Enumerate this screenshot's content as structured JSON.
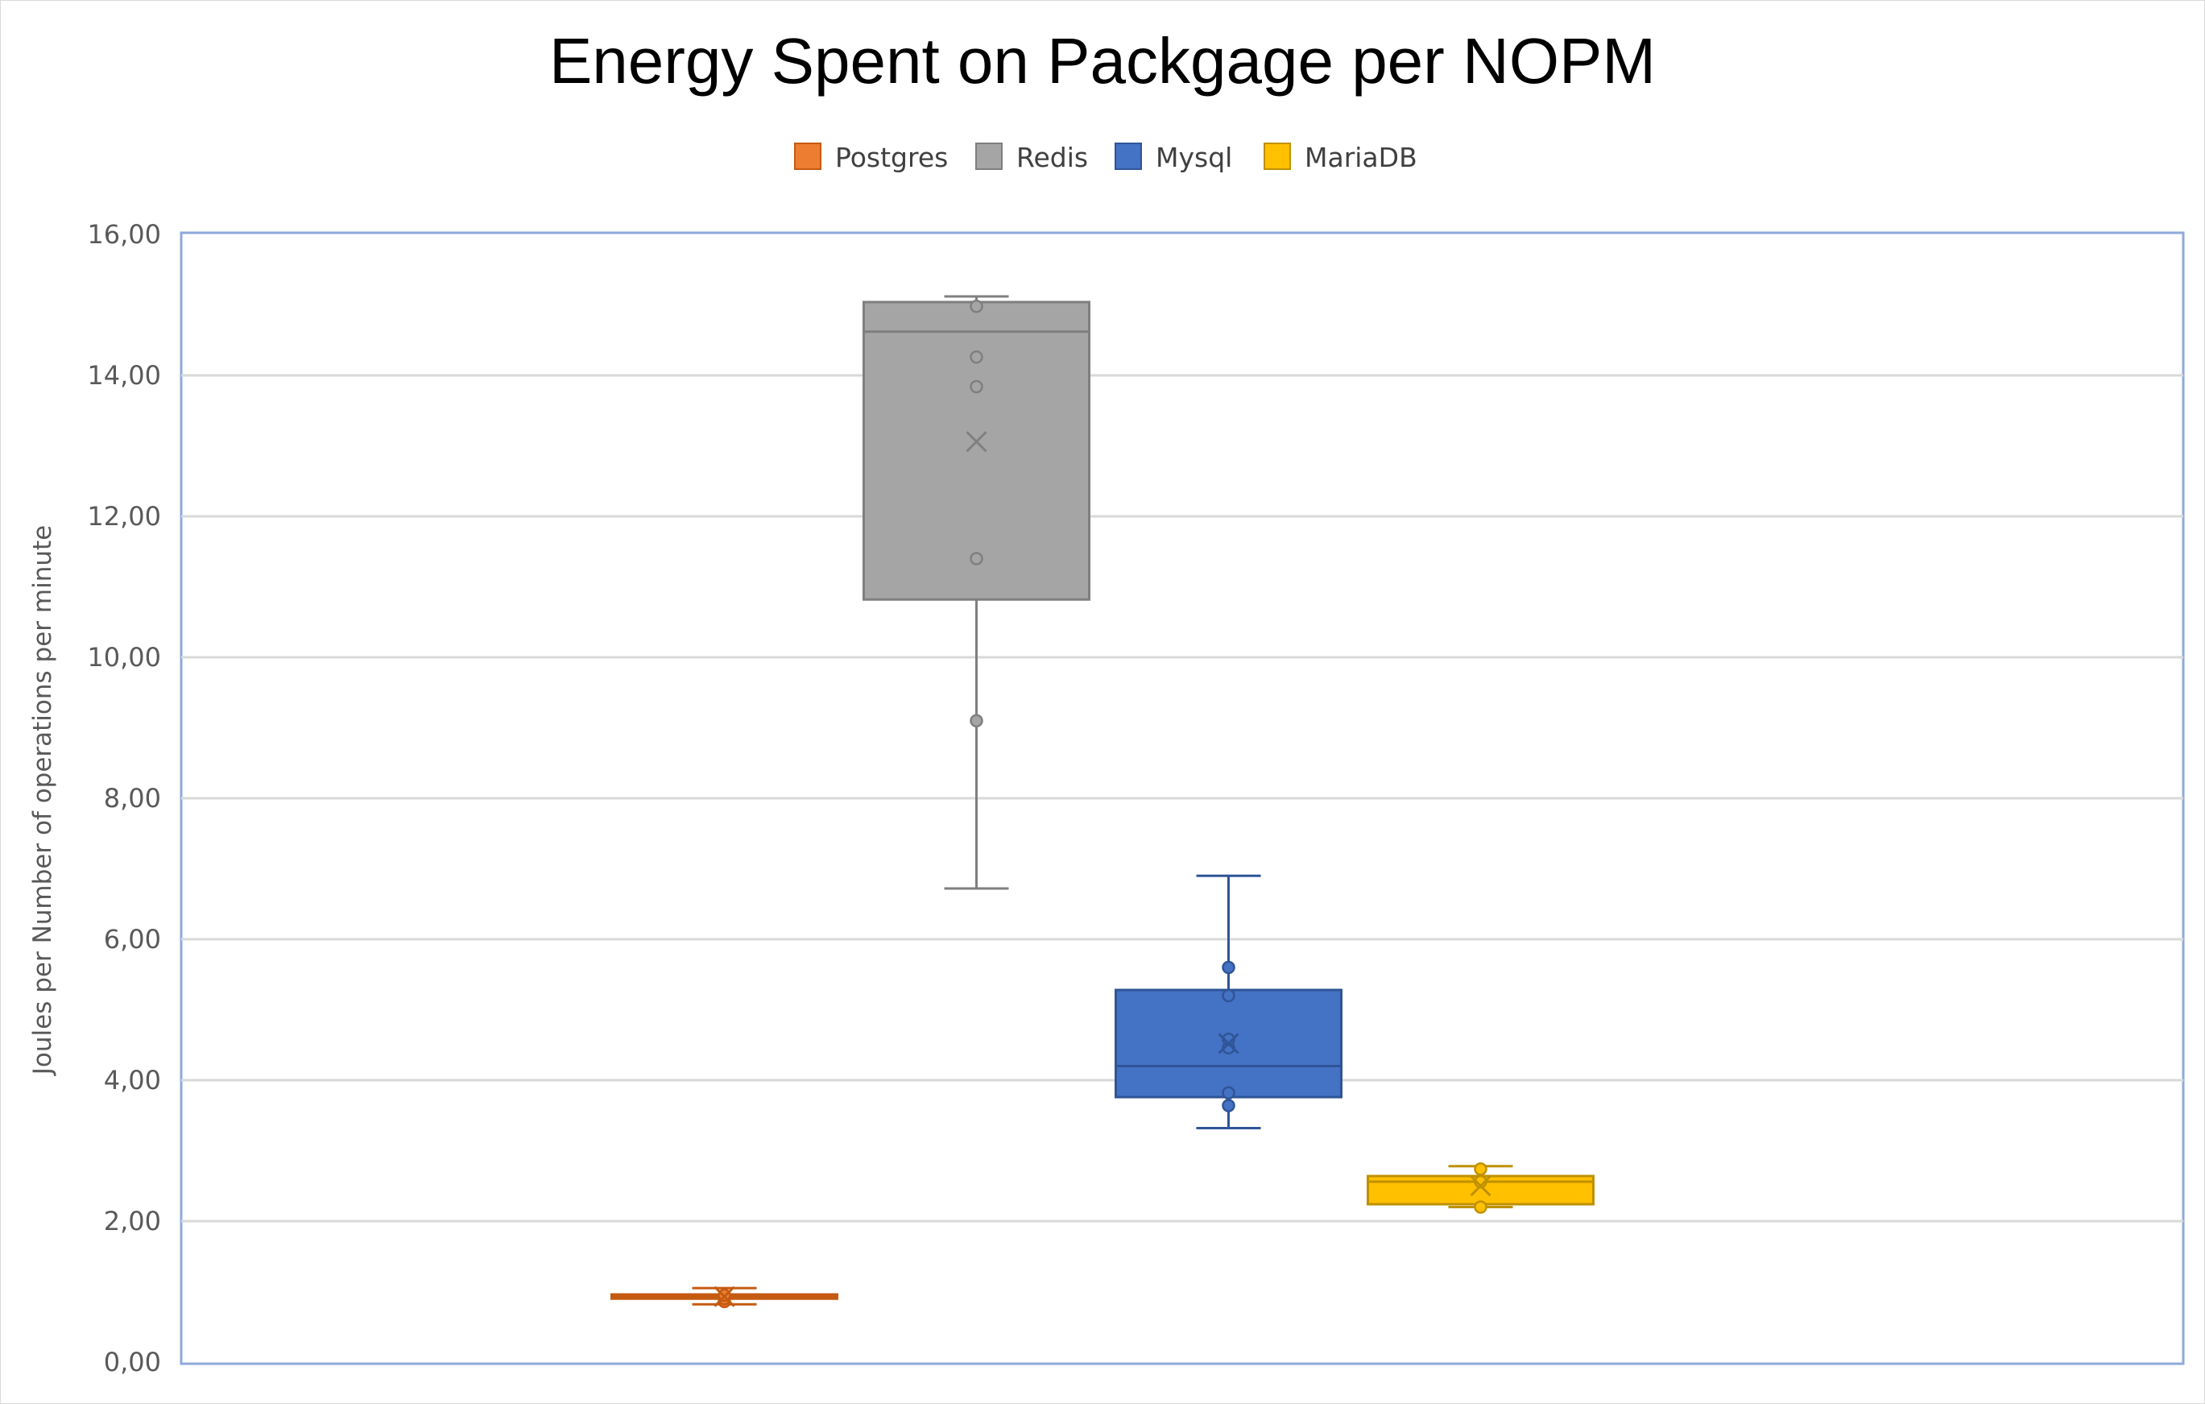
{
  "chart_data": {
    "type": "boxplot",
    "title": "Energy Spent on Packgage per NOPM",
    "xlabel": "",
    "ylabel": "Joules per Number of operations per minute",
    "ylim": [
      0,
      16
    ],
    "yticks": [
      "0,00",
      "2,00",
      "4,00",
      "6,00",
      "8,00",
      "10,00",
      "12,00",
      "14,00",
      "16,00"
    ],
    "grid": true,
    "legend_position": "top",
    "series": [
      {
        "name": "Postgres",
        "color": "#ED7D31",
        "stroke": "#C55A11",
        "whisker_low": 0.82,
        "q1": 0.9,
        "median": 0.93,
        "q3": 0.96,
        "whisker_high": 1.05,
        "mean": 0.93,
        "points": [
          0.86,
          0.9,
          0.95
        ]
      },
      {
        "name": "Redis",
        "color": "#A5A5A5",
        "stroke": "#7F7F7F",
        "whisker_low": 6.72,
        "q1": 10.82,
        "median": 14.62,
        "q3": 15.04,
        "whisker_high": 15.12,
        "mean": 13.06,
        "points": [
          9.1,
          11.4,
          13.84,
          14.26,
          14.98
        ]
      },
      {
        "name": "Mysql",
        "color": "#4472C4",
        "stroke": "#2F5597",
        "whisker_low": 3.32,
        "q1": 3.76,
        "median": 4.2,
        "q3": 5.28,
        "whisker_high": 6.9,
        "mean": 4.52,
        "points": [
          3.64,
          3.82,
          4.46,
          4.58,
          5.2,
          5.6
        ]
      },
      {
        "name": "MariaDB",
        "color": "#FFC000",
        "stroke": "#BF9000",
        "whisker_low": 2.2,
        "q1": 2.24,
        "median": 2.56,
        "q3": 2.64,
        "whisker_high": 2.78,
        "mean": 2.5,
        "points": [
          2.2,
          2.56,
          2.74
        ]
      }
    ]
  }
}
